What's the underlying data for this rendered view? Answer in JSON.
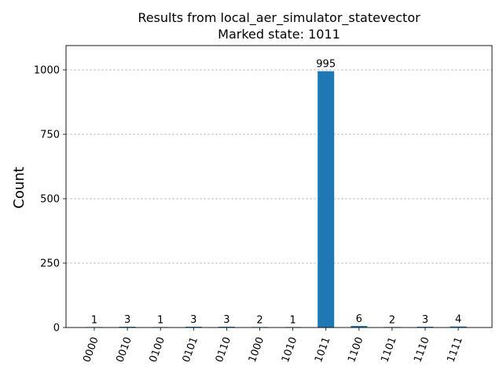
{
  "chart_data": {
    "type": "bar",
    "title": "Results from local_aer_simulator_statevector",
    "subtitle": "Marked state: 1011",
    "xlabel": "",
    "ylabel": "Count",
    "categories": [
      "0000",
      "0010",
      "0100",
      "0101",
      "0110",
      "1000",
      "1010",
      "1011",
      "1100",
      "1101",
      "1110",
      "1111"
    ],
    "values": [
      1,
      3,
      1,
      3,
      3,
      2,
      1,
      995,
      6,
      2,
      3,
      4
    ],
    "ylim": [
      0,
      1094.5
    ],
    "yticks": [
      0,
      250,
      500,
      750,
      1000
    ],
    "grid": "y-dashed",
    "bar_color": "#1f77b4"
  }
}
